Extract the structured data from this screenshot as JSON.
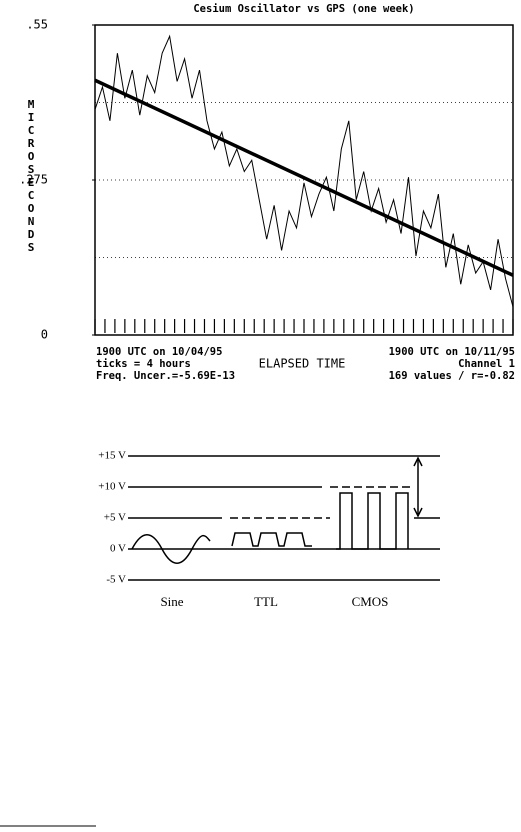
{
  "chart_data": {
    "type": "line",
    "title": "Cesium Oscillator vs GPS (one week)",
    "y_label": "MICROSECONDS",
    "x_label": "ELAPSED TIME",
    "x": [
      0,
      3,
      6,
      9,
      12,
      15,
      18,
      21,
      24,
      27,
      30,
      33,
      36,
      39,
      42,
      45,
      48,
      51,
      54,
      57,
      60,
      63,
      66,
      69,
      72,
      75,
      78,
      81,
      84,
      87,
      90,
      93,
      96,
      99,
      102,
      105,
      108,
      111,
      114,
      117,
      120,
      123,
      126,
      129,
      132,
      135,
      138,
      141,
      144,
      147,
      150,
      153,
      156,
      159,
      162,
      165,
      168
    ],
    "values": [
      0.4,
      0.44,
      0.38,
      0.5,
      0.42,
      0.47,
      0.39,
      0.46,
      0.43,
      0.5,
      0.53,
      0.45,
      0.49,
      0.42,
      0.47,
      0.38,
      0.33,
      0.36,
      0.3,
      0.33,
      0.29,
      0.31,
      0.24,
      0.17,
      0.23,
      0.15,
      0.22,
      0.19,
      0.27,
      0.21,
      0.25,
      0.28,
      0.22,
      0.33,
      0.38,
      0.24,
      0.29,
      0.22,
      0.26,
      0.2,
      0.24,
      0.18,
      0.28,
      0.14,
      0.22,
      0.19,
      0.25,
      0.12,
      0.18,
      0.09,
      0.16,
      0.11,
      0.13,
      0.08,
      0.17,
      0.1,
      0.05
    ],
    "fit": {
      "x": [
        0,
        168
      ],
      "values": [
        0.452,
        0.106
      ]
    },
    "xlim": [
      0,
      168
    ],
    "ylim": [
      0,
      0.55
    ],
    "yticks": [
      {
        "value": 0,
        "label": "0"
      },
      {
        "value": 0.275,
        "label": ".275"
      },
      {
        "value": 0.55,
        "label": ".55"
      }
    ],
    "grid_lines": [
      0.1375,
      0.275,
      0.4125
    ],
    "xticks": [
      0,
      4,
      8,
      12,
      16,
      20,
      24,
      28,
      32,
      36,
      40,
      44,
      48,
      52,
      56,
      60,
      64,
      68,
      72,
      76,
      80,
      84,
      88,
      92,
      96,
      100,
      104,
      108,
      112,
      116,
      120,
      124,
      128,
      132,
      136,
      140,
      144,
      148,
      152,
      156,
      160,
      164,
      168
    ],
    "notes_left": [
      "1900 UTC on 10/04/95",
      "ticks = 4 hours",
      "Freq. Uncer.=-5.69E-13"
    ],
    "notes_right": [
      "1900 UTC on 10/11/95",
      "Channel 1",
      "169 values / r=-0.82"
    ]
  },
  "diagram": {
    "levels": [
      "+15 V",
      "+10 V",
      "+5 V",
      "0 V",
      "-5 V"
    ],
    "labels": [
      "Sine",
      "TTL",
      "CMOS"
    ]
  }
}
